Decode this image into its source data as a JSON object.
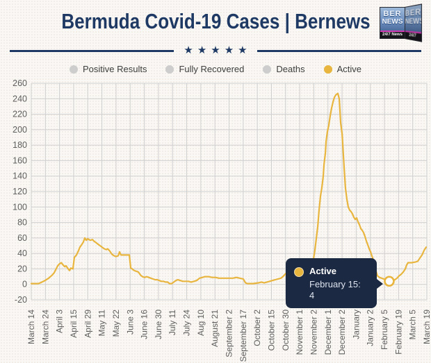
{
  "header": {
    "title": "Bermuda Covid-19 Cases | Bernews",
    "stars": "★★★★★",
    "logo": {
      "line1": "BER",
      "line2": "NEWS",
      "tagline": "24/7 News"
    }
  },
  "colors": {
    "navy": "#1e3963",
    "tooltip_bg": "#1b2942",
    "gold": "#E8B53E",
    "grid": "#cfcfcf",
    "tick_text": "#5e5e5e",
    "legend_disabled": "#cdcdcd"
  },
  "legend": {
    "items": [
      {
        "label": "Positive Results",
        "color": "#cdcdcd",
        "active": false
      },
      {
        "label": "Fully Recovered",
        "color": "#cdcdcd",
        "active": false
      },
      {
        "label": "Deaths",
        "color": "#cdcdcd",
        "active": false
      },
      {
        "label": "Active",
        "color": "#E8B53E",
        "active": true
      }
    ]
  },
  "tooltip": {
    "series": "Active",
    "date_label": "February 15:",
    "value": "4"
  },
  "chart_data": {
    "type": "line",
    "title": "Bermuda Covid-19 Cases",
    "ylim": [
      -20,
      260
    ],
    "ytick_step": 20,
    "grid": true,
    "legend_position": "top",
    "x_labels": [
      "March 14",
      "March 24",
      "April 3",
      "April 15",
      "April 29",
      "May 11",
      "May 22",
      "June 3",
      "June 16",
      "June 30",
      "July 11",
      "July 24",
      "Aug 10",
      "August 21",
      "September 2",
      "September 17",
      "October 2",
      "October 15",
      "October 30",
      "November 1",
      "November 2",
      "December 1",
      "December 2",
      "January",
      "January 2",
      "February 5",
      "February 19",
      "March 5",
      "March 19"
    ],
    "series": [
      {
        "name": "Active",
        "color": "#E8B53E",
        "points": [
          [
            0.0,
            1
          ],
          [
            0.49,
            1
          ],
          [
            0.64,
            2
          ],
          [
            0.98,
            5
          ],
          [
            1.23,
            8
          ],
          [
            1.48,
            12
          ],
          [
            1.62,
            15
          ],
          [
            1.87,
            24
          ],
          [
            1.97,
            26
          ],
          [
            2.12,
            28
          ],
          [
            2.21,
            26
          ],
          [
            2.36,
            23
          ],
          [
            2.46,
            24
          ],
          [
            2.61,
            20
          ],
          [
            2.71,
            18
          ],
          [
            2.8,
            21
          ],
          [
            2.95,
            20
          ],
          [
            3.05,
            35
          ],
          [
            3.2,
            38
          ],
          [
            3.35,
            44
          ],
          [
            3.44,
            48
          ],
          [
            3.59,
            52
          ],
          [
            3.69,
            55
          ],
          [
            3.79,
            60
          ],
          [
            3.89,
            57
          ],
          [
            3.99,
            59
          ],
          [
            4.08,
            58
          ],
          [
            4.18,
            57
          ],
          [
            4.33,
            58
          ],
          [
            4.43,
            56
          ],
          [
            4.58,
            54
          ],
          [
            4.72,
            52
          ],
          [
            4.87,
            50
          ],
          [
            5.02,
            48
          ],
          [
            5.17,
            46
          ],
          [
            5.31,
            45
          ],
          [
            5.41,
            46
          ],
          [
            5.56,
            43
          ],
          [
            5.71,
            39
          ],
          [
            5.86,
            37
          ],
          [
            6.0,
            36
          ],
          [
            6.15,
            37
          ],
          [
            6.25,
            42
          ],
          [
            6.35,
            38
          ],
          [
            6.64,
            38
          ],
          [
            6.94,
            38
          ],
          [
            7.04,
            21
          ],
          [
            7.14,
            20
          ],
          [
            7.28,
            18
          ],
          [
            7.43,
            17
          ],
          [
            7.58,
            16
          ],
          [
            7.73,
            12
          ],
          [
            7.87,
            10
          ],
          [
            8.02,
            9
          ],
          [
            8.17,
            10
          ],
          [
            8.32,
            9
          ],
          [
            8.46,
            8
          ],
          [
            8.61,
            7
          ],
          [
            8.76,
            6
          ],
          [
            8.91,
            6
          ],
          [
            9.06,
            5
          ],
          [
            9.2,
            4
          ],
          [
            9.35,
            4
          ],
          [
            9.5,
            3
          ],
          [
            9.65,
            3
          ],
          [
            9.79,
            1
          ],
          [
            9.94,
            1
          ],
          [
            10.09,
            3
          ],
          [
            10.24,
            5
          ],
          [
            10.38,
            6
          ],
          [
            10.53,
            5
          ],
          [
            10.73,
            4
          ],
          [
            10.93,
            4
          ],
          [
            11.12,
            4
          ],
          [
            11.32,
            3
          ],
          [
            11.52,
            4
          ],
          [
            11.71,
            5
          ],
          [
            11.91,
            8
          ],
          [
            12.11,
            9
          ],
          [
            12.3,
            10
          ],
          [
            12.55,
            10
          ],
          [
            12.8,
            9
          ],
          [
            13.04,
            9
          ],
          [
            13.29,
            8
          ],
          [
            13.78,
            8
          ],
          [
            14.27,
            8
          ],
          [
            14.52,
            9
          ],
          [
            14.76,
            8
          ],
          [
            15.01,
            7
          ],
          [
            15.16,
            2
          ],
          [
            15.3,
            1
          ],
          [
            15.7,
            1
          ],
          [
            16.09,
            2
          ],
          [
            16.29,
            3
          ],
          [
            16.49,
            2
          ],
          [
            16.68,
            3
          ],
          [
            16.88,
            4
          ],
          [
            17.08,
            5
          ],
          [
            17.27,
            6
          ],
          [
            17.47,
            7
          ],
          [
            17.67,
            8
          ],
          [
            17.81,
            10
          ],
          [
            17.96,
            13
          ],
          [
            18.11,
            16
          ],
          [
            18.26,
            18
          ],
          [
            18.45,
            20
          ],
          [
            18.7,
            23
          ],
          [
            18.95,
            26
          ],
          [
            19.19,
            27
          ],
          [
            19.44,
            28
          ],
          [
            19.64,
            29
          ],
          [
            19.83,
            30
          ],
          [
            19.98,
            33
          ],
          [
            20.08,
            45
          ],
          [
            20.18,
            60
          ],
          [
            20.28,
            75
          ],
          [
            20.37,
            95
          ],
          [
            20.47,
            114
          ],
          [
            20.57,
            125
          ],
          [
            20.67,
            140
          ],
          [
            20.72,
            155
          ],
          [
            20.82,
            170
          ],
          [
            20.87,
            185
          ],
          [
            20.96,
            197
          ],
          [
            21.06,
            206
          ],
          [
            21.16,
            218
          ],
          [
            21.26,
            228
          ],
          [
            21.36,
            236
          ],
          [
            21.46,
            242
          ],
          [
            21.56,
            245
          ],
          [
            21.7,
            247
          ],
          [
            21.8,
            240
          ],
          [
            21.85,
            225
          ],
          [
            21.9,
            209
          ],
          [
            22.0,
            195
          ],
          [
            22.05,
            180
          ],
          [
            22.15,
            150
          ],
          [
            22.24,
            125
          ],
          [
            22.34,
            110
          ],
          [
            22.44,
            100
          ],
          [
            22.54,
            96
          ],
          [
            22.64,
            94
          ],
          [
            22.74,
            91
          ],
          [
            22.83,
            87
          ],
          [
            22.93,
            84
          ],
          [
            23.03,
            86
          ],
          [
            23.13,
            81
          ],
          [
            23.23,
            77
          ],
          [
            23.33,
            72
          ],
          [
            23.42,
            70
          ],
          [
            23.52,
            67
          ],
          [
            23.62,
            62
          ],
          [
            23.72,
            56
          ],
          [
            23.82,
            51
          ],
          [
            23.92,
            46
          ],
          [
            24.02,
            42
          ],
          [
            24.11,
            37
          ],
          [
            24.21,
            32
          ],
          [
            24.31,
            25
          ],
          [
            24.41,
            17
          ],
          [
            24.51,
            11
          ],
          [
            24.65,
            9
          ],
          [
            24.8,
            8
          ],
          [
            24.95,
            7
          ],
          [
            25.1,
            5
          ],
          [
            25.25,
            4
          ],
          [
            25.34,
            4
          ],
          [
            25.49,
            4
          ],
          [
            25.64,
            5
          ],
          [
            25.74,
            6
          ],
          [
            25.89,
            8
          ],
          [
            26.03,
            11
          ],
          [
            26.18,
            13
          ],
          [
            26.33,
            16
          ],
          [
            26.48,
            20
          ],
          [
            26.57,
            25
          ],
          [
            26.67,
            28
          ],
          [
            26.92,
            28
          ],
          [
            27.21,
            29
          ],
          [
            27.36,
            30
          ],
          [
            27.51,
            34
          ],
          [
            27.66,
            38
          ],
          [
            27.81,
            44
          ],
          [
            27.95,
            48
          ]
        ]
      }
    ],
    "highlight": {
      "series": "Active",
      "u": 25.34,
      "value": 4,
      "date": "February 15"
    }
  }
}
